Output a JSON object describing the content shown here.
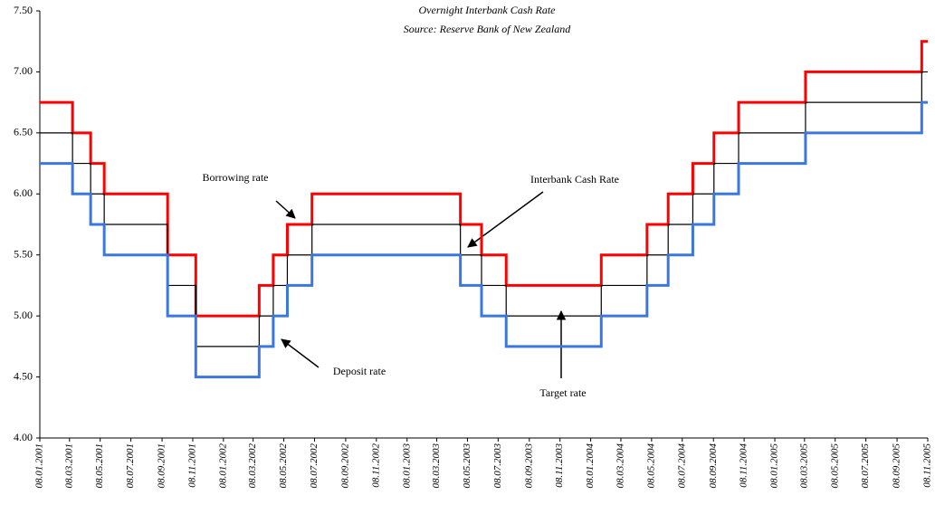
{
  "chart_data": {
    "type": "line",
    "step": true,
    "title": "Overnight Interbank Cash Rate",
    "subtitle": "Source: Reserve Bank of New Zealand",
    "x": [
      "08.01.2001",
      "14.03.2001",
      "19.04.2001",
      "16.05.2001",
      "19.09.2001",
      "14.11.2001",
      "20.03.2002",
      "17.04.2002",
      "15.05.2002",
      "03.07.2002",
      "24.04.2003",
      "05.06.2003",
      "24.07.2003",
      "29.01.2004",
      "29.04.2004",
      "10.06.2004",
      "29.07.2004",
      "09.09.2004",
      "28.10.2004",
      "10.03.2005",
      "27.10.2005",
      "08.11.2005"
    ],
    "series": [
      {
        "name": "Borrowing rate",
        "color": "#ff0000",
        "values": [
          6.75,
          6.5,
          6.25,
          6.0,
          5.5,
          5.0,
          5.25,
          5.5,
          5.75,
          6.0,
          5.75,
          5.5,
          5.25,
          5.5,
          5.75,
          6.0,
          6.25,
          6.5,
          6.75,
          7.0,
          7.25,
          7.25
        ]
      },
      {
        "name": "Target rate",
        "color": "#000000",
        "values": [
          6.5,
          6.25,
          6.0,
          5.75,
          5.25,
          4.75,
          5.0,
          5.25,
          5.5,
          5.75,
          5.5,
          5.25,
          5.0,
          5.25,
          5.5,
          5.75,
          6.0,
          6.25,
          6.5,
          6.75,
          7.0,
          7.0
        ]
      },
      {
        "name": "Deposit rate",
        "color": "#3a78e0",
        "values": [
          6.25,
          6.0,
          5.75,
          5.5,
          5.0,
          4.5,
          4.75,
          5.0,
          5.25,
          5.5,
          5.25,
          5.0,
          4.75,
          5.0,
          5.25,
          5.5,
          5.75,
          6.0,
          6.25,
          6.5,
          6.75,
          6.75
        ]
      }
    ],
    "annotations": [
      "Interbank Cash Rate"
    ],
    "xlim": [
      "08.01.2001",
      "08.11.2005"
    ],
    "xticks": [
      "08.01.2001",
      "08.03.2001",
      "08.05.2001",
      "08.07.2001",
      "08.09.2001",
      "08.11.2001",
      "08.01.2002",
      "08.03.2002",
      "08.05.2002",
      "08.07.2002",
      "08.09.2002",
      "08.11.2002",
      "08.01.2003",
      "08.03.2003",
      "08.05.2003",
      "08.07.2003",
      "08.09.2003",
      "08.11.2003",
      "08.01.2004",
      "08.03.2004",
      "08.05.2004",
      "08.07.2004",
      "08.09.2004",
      "08.11.2004",
      "08.01.2005",
      "08.03.2005",
      "08.05.2005",
      "08.07.2005",
      "08.09.2005",
      "08.11.2005"
    ],
    "ylim": [
      4,
      7.5
    ],
    "yticks": [
      {
        "value": 4,
        "label": "4.00"
      },
      {
        "value": 4.5,
        "label": "4.50"
      },
      {
        "value": 5,
        "label": "5.00"
      },
      {
        "value": 5.5,
        "label": "5.50"
      },
      {
        "value": 6,
        "label": "6.00"
      },
      {
        "value": 6.5,
        "label": "6.50"
      },
      {
        "value": 7,
        "label": "7.00"
      },
      {
        "value": 7.5,
        "label": "7.50"
      }
    ],
    "grid": false
  }
}
